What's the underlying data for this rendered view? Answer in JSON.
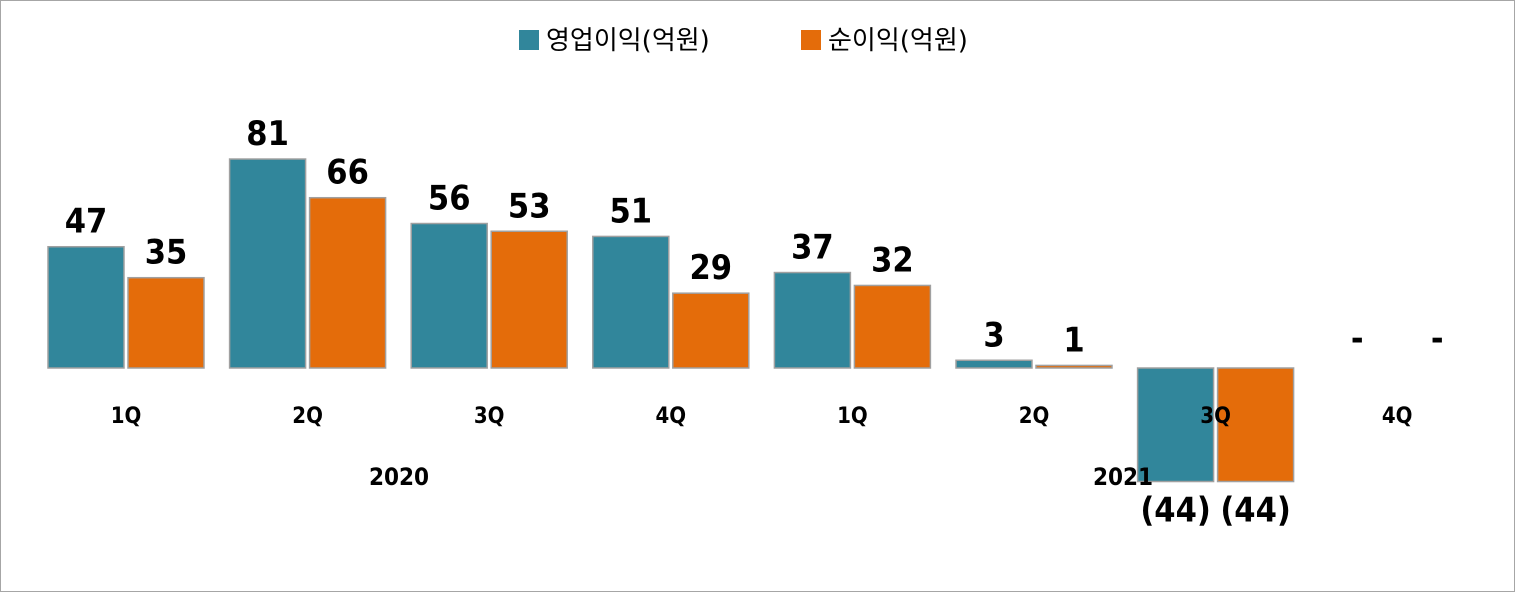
{
  "chart_data": {
    "type": "bar",
    "legend_position": "top-center",
    "grid": false,
    "ylim": [
      -44,
      81
    ],
    "categories": [
      "1Q",
      "2Q",
      "3Q",
      "4Q",
      "1Q",
      "2Q",
      "3Q",
      "4Q"
    ],
    "groups": [
      {
        "label": "2020",
        "start": 0,
        "end": 3
      },
      {
        "label": "2021",
        "start": 4,
        "end": 7
      }
    ],
    "series": [
      {
        "name": "영업이익(억원)",
        "color": "#31869b",
        "values": [
          47,
          81,
          56,
          51,
          37,
          3,
          -44,
          null
        ],
        "labels": [
          "47",
          "81",
          "56",
          "51",
          "37",
          "3",
          "(44)",
          "-"
        ]
      },
      {
        "name": "순이익(억원)",
        "color": "#e46c0a",
        "values": [
          35,
          66,
          53,
          29,
          32,
          1,
          -44,
          null
        ],
        "labels": [
          "35",
          "66",
          "53",
          "29",
          "32",
          "1",
          "(44)",
          "-"
        ]
      }
    ]
  }
}
